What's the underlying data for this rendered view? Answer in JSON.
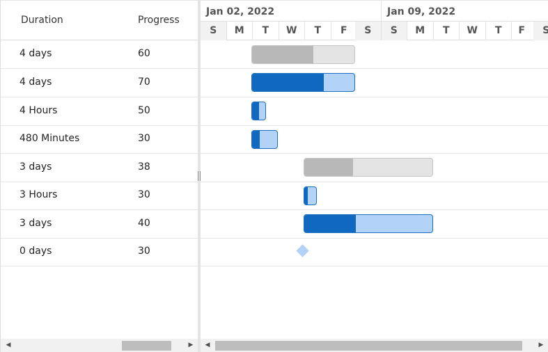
{
  "grid": {
    "columns": {
      "duration": "Duration",
      "progress": "Progress"
    },
    "rows": [
      {
        "duration": "4 days",
        "progress": "60"
      },
      {
        "duration": "4 days",
        "progress": "70"
      },
      {
        "duration": "4 Hours",
        "progress": "50"
      },
      {
        "duration": "480 Minutes",
        "progress": "30"
      },
      {
        "duration": "3 days",
        "progress": "38"
      },
      {
        "duration": "3 Hours",
        "progress": "30"
      },
      {
        "duration": "3 days",
        "progress": "40"
      },
      {
        "duration": "0 days",
        "progress": "30"
      }
    ]
  },
  "timeline": {
    "weeks": [
      "Jan 02, 2022",
      "Jan 09, 2022"
    ],
    "days": [
      "S",
      "M",
      "T",
      "W",
      "T",
      "F",
      "S",
      "S",
      "M",
      "T",
      "W",
      "T",
      "F",
      "S"
    ]
  },
  "bars": [
    {
      "type": "parent",
      "progress": 60
    },
    {
      "type": "child",
      "progress": 70
    },
    {
      "type": "child",
      "progress": 50
    },
    {
      "type": "child",
      "progress": 30
    },
    {
      "type": "parent",
      "progress": 38
    },
    {
      "type": "child",
      "progress": 30
    },
    {
      "type": "child",
      "progress": 40
    },
    {
      "type": "milestone",
      "progress": 30
    }
  ],
  "icons": {
    "scroll_left": "chevron-left-icon",
    "scroll_right": "chevron-right-icon",
    "splitter": "resize-handle-icon"
  },
  "colors": {
    "child_fill": "#1168c0",
    "child_track": "#b3d2f7",
    "parent_fill": "#b8b8b8",
    "parent_track": "#e4e4e4"
  }
}
